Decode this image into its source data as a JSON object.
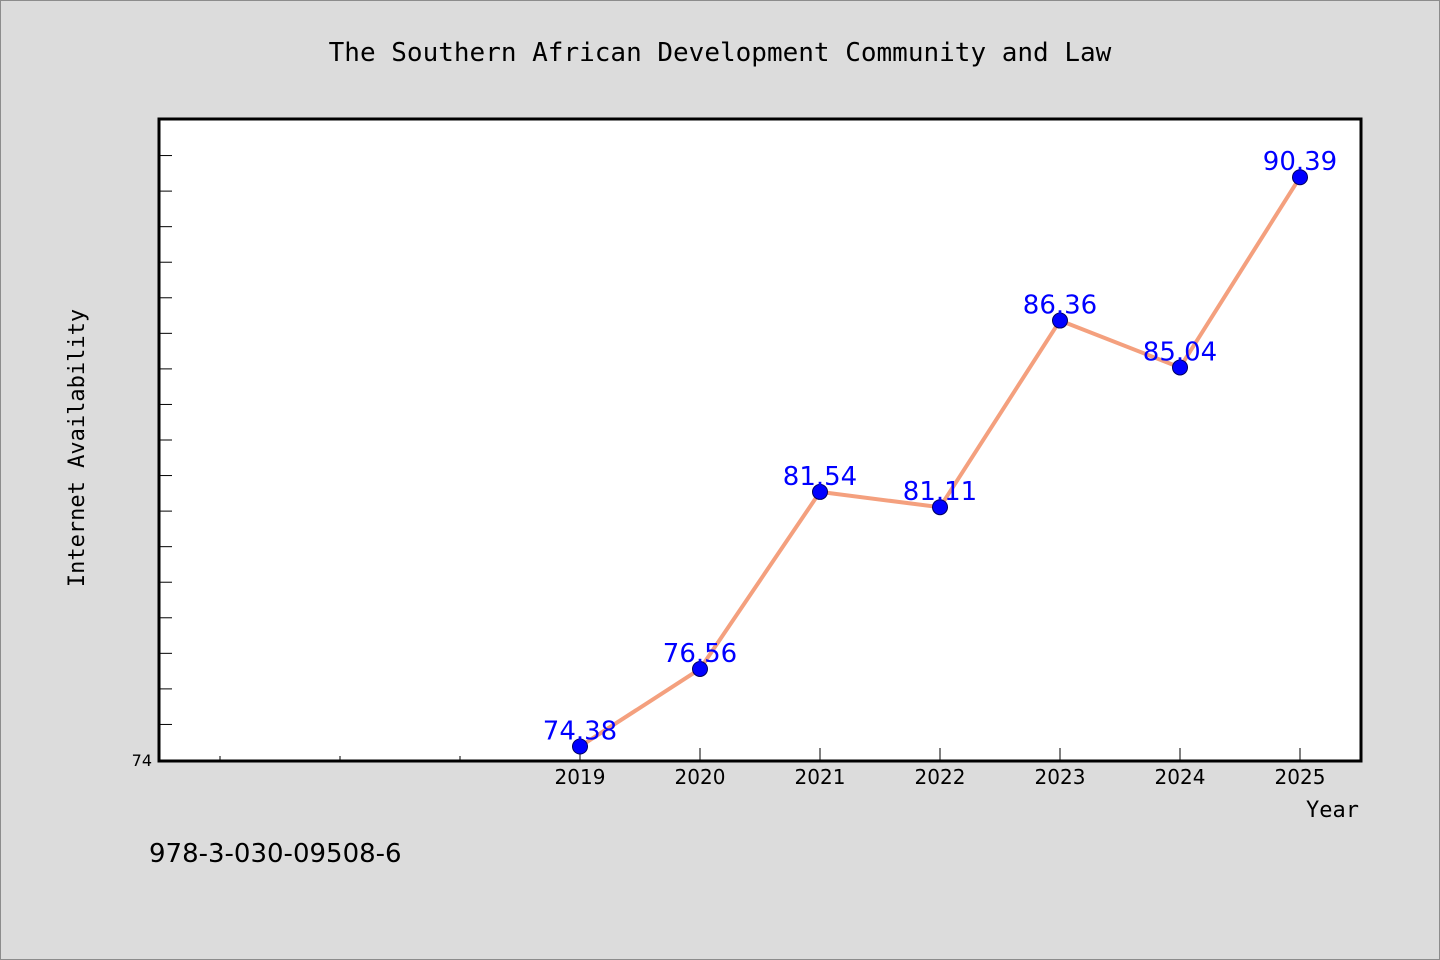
{
  "chart_data": {
    "type": "line",
    "title": "The Southern African Development Community and Law",
    "xlabel": "Year",
    "ylabel": "Internet Availability",
    "categories": [
      "2019",
      "2020",
      "2021",
      "2022",
      "2023",
      "2024",
      "2025"
    ],
    "values": [
      74.38,
      76.56,
      81.54,
      81.11,
      86.36,
      85.04,
      90.39
    ],
    "data_labels": [
      "74.38",
      "76.56",
      "81.54",
      "81.11",
      "86.36",
      "85.04",
      "90.39"
    ],
    "x_range": [
      2015.5,
      2025.5
    ],
    "ylim": [
      74,
      92
    ],
    "y_tick_labels": [
      {
        "value": 74,
        "label": "74"
      }
    ],
    "grid": false,
    "line_color": "#f4a07e",
    "marker_color": "#0000ff",
    "label_color": "#0000ff",
    "plot_background": "#ffffff",
    "figure_background": "#dcdcdc"
  },
  "footer_text": "978-3-030-09508-6"
}
